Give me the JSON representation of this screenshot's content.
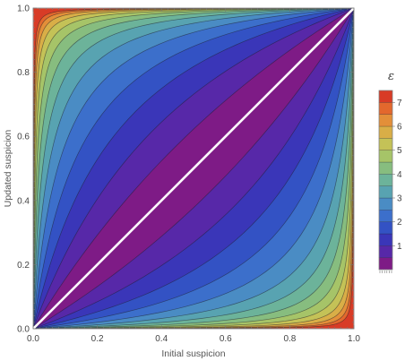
{
  "chart_data": {
    "type": "contour",
    "xlabel": "Initial suspicion",
    "ylabel": "Updated suspicion",
    "xlim": [
      0,
      1
    ],
    "ylim": [
      0,
      1
    ],
    "x_ticks": [
      "0.0",
      "0.2",
      "0.4",
      "0.6",
      "0.8",
      "1.0"
    ],
    "y_ticks": [
      "0.0",
      "0.2",
      "0.4",
      "0.6",
      "0.8",
      "1.0"
    ],
    "x_tick_values": [
      0,
      0.2,
      0.4,
      0.6,
      0.8,
      1.0
    ],
    "y_tick_values": [
      0,
      0.2,
      0.4,
      0.6,
      0.8,
      1.0
    ],
    "function": "epsilon = |ln(y/(1-y)) - ln(x/(1-x))|",
    "diagonal_line": "y = x",
    "contour_levels": [
      0.5,
      1,
      1.5,
      2,
      2.5,
      3,
      3.5,
      4,
      4.5,
      5,
      5.5,
      6,
      6.5,
      7,
      7.5
    ],
    "colorbar": {
      "title": "ε",
      "tick_labels": [
        "1",
        "2",
        "3",
        "4",
        "5",
        "6",
        "7"
      ],
      "tick_values": [
        1,
        2,
        3,
        4,
        5,
        6,
        7
      ],
      "range": [
        0,
        7.5
      ],
      "colors": [
        "#7e1b86",
        "#5728a8",
        "#3a36b8",
        "#3352c4",
        "#3c6fcb",
        "#4a8cc4",
        "#58a3b1",
        "#6cb39a",
        "#87bd7f",
        "#a6c468",
        "#c4c257",
        "#d9ae47",
        "#e38f39",
        "#e3682d",
        "#d83b26"
      ]
    }
  }
}
